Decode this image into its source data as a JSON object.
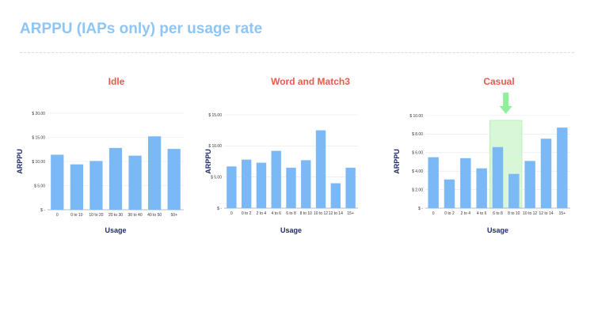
{
  "header": {
    "title": "ARPPU (IAPs only) per usage rate"
  },
  "colors": {
    "bar": "#7ab8f6",
    "title": "#8ec5f5",
    "chart_title": "#ea5a4b",
    "axis_title": "#1f2a6e",
    "highlight": "#c8f5c8",
    "arrow": "#8ef09a"
  },
  "chart_data": [
    {
      "type": "bar",
      "title": "Idle",
      "xlabel": "Usage",
      "ylabel": "ARPPU",
      "categories": [
        "0",
        "0 to 10",
        "10 to 20",
        "20 to 30",
        "30 to 40",
        "40 to 50",
        "50+"
      ],
      "values": [
        11.4,
        9.4,
        10.1,
        12.8,
        11.2,
        15.2,
        12.6
      ],
      "ylim": [
        0,
        20
      ],
      "yticks": [
        0,
        5,
        10,
        15,
        20
      ],
      "ytick_labels": [
        "$ -",
        "$ 5.00",
        "$ 10.00",
        "$ 15.00",
        "$ 20.00"
      ],
      "grid": true
    },
    {
      "type": "bar",
      "title": "Word and Match3",
      "xlabel": "Usage",
      "ylabel": "ARPPU",
      "categories": [
        "0",
        "0 to 2",
        "2 to 4",
        "4 to 6",
        "6 to 8",
        "8 to 10",
        "10 to 12",
        "12 to 14",
        "15+"
      ],
      "values": [
        6.7,
        7.8,
        7.3,
        9.2,
        6.5,
        7.7,
        12.5,
        4.0,
        6.5
      ],
      "ylim": [
        0,
        15
      ],
      "yticks": [
        0,
        5,
        10,
        15
      ],
      "ytick_labels": [
        "$ -",
        "$ 5.00",
        "$ 10.00",
        "$ 15.00"
      ],
      "grid": true
    },
    {
      "type": "bar",
      "title": "Casual",
      "xlabel": "Usage",
      "ylabel": "ARPPU",
      "categories": [
        "0",
        "0 to 2",
        "2 to 4",
        "4 to 6",
        "6 to 8",
        "8 to 10",
        "10 to 12",
        "12 to 14",
        "15+"
      ],
      "values": [
        5.5,
        3.1,
        5.4,
        4.3,
        6.6,
        3.7,
        5.1,
        7.5,
        8.7
      ],
      "ylim": [
        0,
        10
      ],
      "yticks": [
        0,
        2,
        4,
        6,
        8,
        10
      ],
      "ytick_labels": [
        "$ -",
        "$ 2.00",
        "$ 4.00",
        "$ 6.00",
        "$ 8.00",
        "$ 10.00"
      ],
      "grid": true,
      "highlight_categories": [
        "6 to 8",
        "8 to 10"
      ]
    }
  ]
}
